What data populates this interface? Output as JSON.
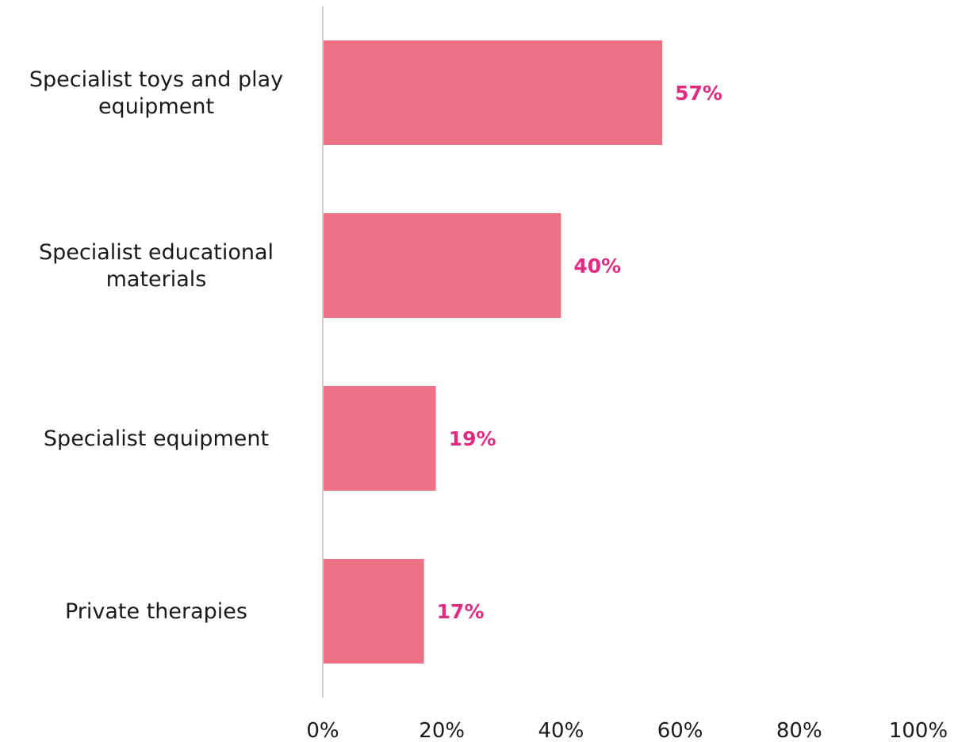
{
  "chart_data": {
    "type": "bar",
    "orientation": "horizontal",
    "categories": [
      [
        "Specialist toys and play",
        "equipment"
      ],
      [
        "Specialist educational",
        "materials"
      ],
      [
        "Specialist equipment"
      ],
      [
        "Private therapies"
      ]
    ],
    "values": [
      57,
      40,
      19,
      17
    ],
    "data_labels": [
      "57%",
      "40%",
      "19%",
      "17%"
    ],
    "xlim": [
      0,
      100
    ],
    "x_ticks": [
      0,
      20,
      40,
      60,
      80,
      100
    ],
    "x_tick_labels": [
      "0%",
      "20%",
      "40%",
      "60%",
      "80%",
      "100%"
    ],
    "grid": false,
    "legend": "none",
    "colors": {
      "bar": "#ee7084",
      "data_label": "#e02b7f",
      "axis": "#d0d0d0"
    }
  }
}
